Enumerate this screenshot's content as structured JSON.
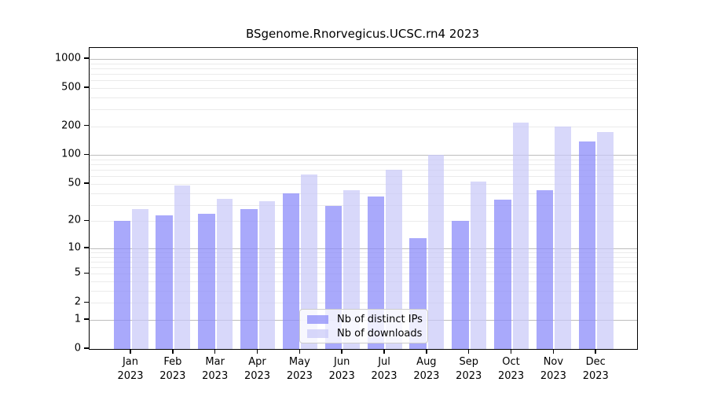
{
  "chart_data": {
    "type": "bar",
    "title": "BSgenome.Rnorvegicus.UCSC.rn4 2023",
    "categories": [
      "Jan",
      "Feb",
      "Mar",
      "Apr",
      "May",
      "Jun",
      "Jul",
      "Aug",
      "Sep",
      "Oct",
      "Nov",
      "Dec"
    ],
    "category_year": "2023",
    "series": [
      {
        "name": "Nb of distinct IPs",
        "color": "#8c8cfa",
        "opacity": 0.75,
        "values": [
          20,
          23,
          24,
          27,
          40,
          29,
          37,
          13,
          20,
          34,
          43,
          140
        ]
      },
      {
        "name": "Nb of downloads",
        "color": "#c8c8f8",
        "opacity": 0.7,
        "values": [
          27,
          48,
          35,
          33,
          63,
          43,
          70,
          100,
          53,
          220,
          200,
          176
        ]
      }
    ],
    "yscale": "log1p",
    "yticks": [
      0,
      1,
      2,
      5,
      10,
      20,
      50,
      100,
      200,
      500,
      1000
    ],
    "ylim": [
      0,
      1300
    ],
    "grid": true,
    "legend_position": "bottom-center",
    "colors": {
      "major_grid": "#bdbdbd",
      "minor_grid": "#ebebeb",
      "axis": "#000000"
    }
  }
}
